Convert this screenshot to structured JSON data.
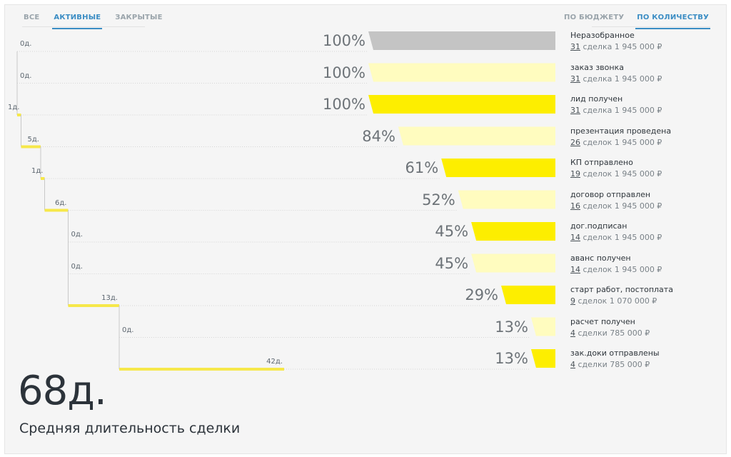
{
  "tabs_left": [
    {
      "label": "ВСЕ",
      "active": false
    },
    {
      "label": "АКТИВНЫЕ",
      "active": true
    },
    {
      "label": "ЗАКРЫТЫЕ",
      "active": false
    }
  ],
  "tabs_right": [
    {
      "label": "ПО БЮДЖЕТУ",
      "active": false
    },
    {
      "label": "ПО КОЛИЧЕСТВУ",
      "active": true
    }
  ],
  "colors": {
    "stage_gray": "#c4c4c4",
    "stage_light": "#fffcbf",
    "stage_yellow": "#fdee00",
    "accent": "#3b8dc4",
    "timeline_line": "#f6e84a"
  },
  "funnel": [
    {
      "name": "Неразобранное",
      "percent": "100%",
      "fraction": 1.0,
      "count": "31",
      "count_word": "сделка",
      "amount": "1 945 000 ₽",
      "duration_days": 0,
      "duration_label": "0д.",
      "color": "gray"
    },
    {
      "name": "заказ звонка",
      "percent": "100%",
      "fraction": 1.0,
      "count": "31",
      "count_word": "сделка",
      "amount": "1 945 000 ₽",
      "duration_days": 0,
      "duration_label": "0д.",
      "color": "light"
    },
    {
      "name": "лид получен",
      "percent": "100%",
      "fraction": 1.0,
      "count": "31",
      "count_word": "сделка",
      "amount": "1 945 000 ₽",
      "duration_days": 1,
      "duration_label": "1д.",
      "color": "yellow"
    },
    {
      "name": "презентация проведена",
      "percent": "84%",
      "fraction": 0.84,
      "count": "26",
      "count_word": "сделок",
      "amount": "1 945 000 ₽",
      "duration_days": 5,
      "duration_label": "5д.",
      "color": "light"
    },
    {
      "name": "КП отправлено",
      "percent": "61%",
      "fraction": 0.61,
      "count": "19",
      "count_word": "сделок",
      "amount": "1 945 000 ₽",
      "duration_days": 1,
      "duration_label": "1д.",
      "color": "yellow"
    },
    {
      "name": "договор отправлен",
      "percent": "52%",
      "fraction": 0.52,
      "count": "16",
      "count_word": "сделок",
      "amount": "1 945 000 ₽",
      "duration_days": 6,
      "duration_label": "6д.",
      "color": "light"
    },
    {
      "name": "дог.подписан",
      "percent": "45%",
      "fraction": 0.45,
      "count": "14",
      "count_word": "сделок",
      "amount": "1 945 000 ₽",
      "duration_days": 0,
      "duration_label": "0д.",
      "color": "yellow"
    },
    {
      "name": "аванс получен",
      "percent": "45%",
      "fraction": 0.45,
      "count": "14",
      "count_word": "сделок",
      "amount": "1 945 000 ₽",
      "duration_days": 0,
      "duration_label": "0д.",
      "color": "light"
    },
    {
      "name": "старт работ, постоплата",
      "percent": "29%",
      "fraction": 0.29,
      "count": "9",
      "count_word": "сделок",
      "amount": "1 070 000 ₽",
      "duration_days": 13,
      "duration_label": "13д.",
      "color": "yellow"
    },
    {
      "name": "расчет получен",
      "percent": "13%",
      "fraction": 0.13,
      "count": "4",
      "count_word": "сделки",
      "amount": "785 000 ₽",
      "duration_days": 0,
      "duration_label": "0д.",
      "color": "light"
    },
    {
      "name": "зак.доки отправлены",
      "percent": "13%",
      "fraction": 0.13,
      "count": "4",
      "count_word": "сделки",
      "amount": "785 000 ₽",
      "duration_days": 42,
      "duration_label": "42д.",
      "color": "yellow"
    }
  ],
  "summary": {
    "value": "68д.",
    "label": "Средняя длительность сделки"
  }
}
